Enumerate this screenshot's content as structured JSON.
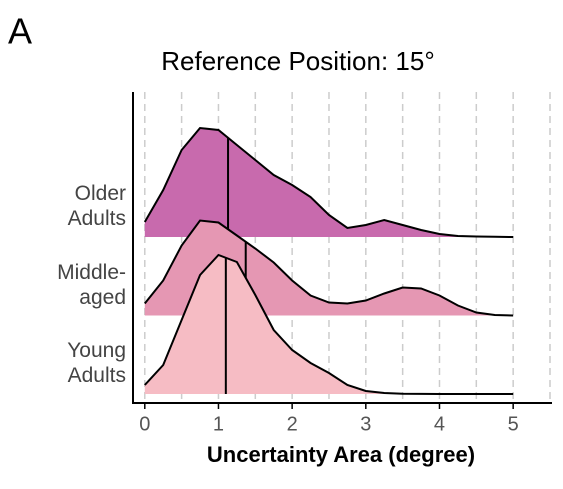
{
  "chart_data": {
    "type": "ridgeline",
    "panel": "A",
    "title": "Reference Position: 15°",
    "x_label": "Uncertainty Area (degree)",
    "xlim": [
      -0.16,
      5.5
    ],
    "xticks": [
      0,
      1,
      2,
      3,
      4,
      5
    ],
    "grid_x": [
      0,
      0.5,
      1,
      1.5,
      2,
      2.5,
      3,
      3.5,
      4,
      4.5,
      5,
      5.5
    ],
    "grid": true,
    "x": [
      0,
      0.25,
      0.5,
      0.75,
      1,
      1.25,
      1.5,
      1.75,
      2,
      2.25,
      2.5,
      2.75,
      3,
      3.25,
      3.5,
      3.75,
      4,
      4.25,
      4.5,
      4.75,
      5
    ],
    "series": [
      {
        "name": "Older Adults",
        "color": "#c86aad",
        "median": 1.13,
        "values": [
          0.15,
          0.47,
          0.87,
          1.09,
          1.07,
          0.92,
          0.77,
          0.62,
          0.52,
          0.4,
          0.22,
          0.09,
          0.12,
          0.17,
          0.12,
          0.07,
          0.03,
          0.01,
          0.005,
          0.002,
          0
        ]
      },
      {
        "name": "Middle-aged",
        "color": "#e597b3",
        "median": 1.37,
        "values": [
          0.12,
          0.35,
          0.7,
          0.95,
          0.93,
          0.8,
          0.67,
          0.53,
          0.35,
          0.2,
          0.13,
          0.12,
          0.15,
          0.22,
          0.28,
          0.27,
          0.2,
          0.1,
          0.03,
          0.005,
          0
        ]
      },
      {
        "name": "Young Adults",
        "color": "#f6bcc4",
        "median": 1.1,
        "values": [
          0.09,
          0.29,
          0.74,
          1.19,
          1.39,
          1.32,
          0.99,
          0.64,
          0.44,
          0.31,
          0.21,
          0.09,
          0.03,
          0.01,
          0.003,
          0.001,
          0,
          0,
          0,
          0,
          0
        ]
      }
    ]
  }
}
